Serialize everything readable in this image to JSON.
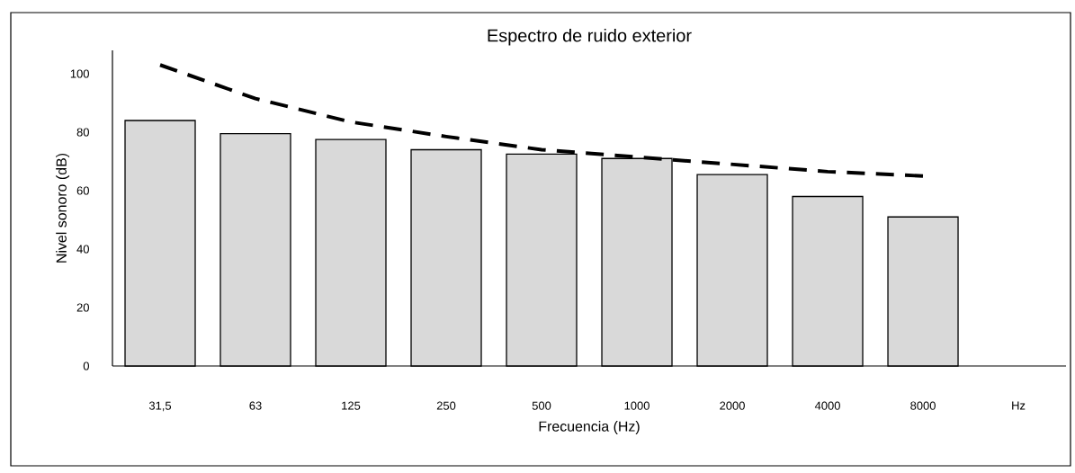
{
  "chart_data": {
    "type": "bar",
    "title": "Espectro de ruido exterior",
    "xlabel": "Frecuencia (Hz)",
    "ylabel": "Nivel sonoro (dB)",
    "categories": [
      "31,5",
      "63",
      "125",
      "250",
      "500",
      "1000",
      "2000",
      "4000",
      "8000",
      "Hz"
    ],
    "series": [
      {
        "color": "#d9d9d9",
        "values": [
          84,
          79.5,
          77.5,
          74,
          72.5,
          71,
          65.5,
          58,
          51,
          null
        ]
      },
      {
        "type": "line",
        "color": "#000000",
        "line_style": "dashed",
        "values": [
          103,
          91.5,
          83.5,
          78.5,
          74,
          71.5,
          69,
          66.5,
          65,
          null
        ]
      }
    ],
    "ylim": [
      0,
      108
    ],
    "yticks": [
      0,
      20,
      40,
      60,
      80,
      100
    ]
  }
}
